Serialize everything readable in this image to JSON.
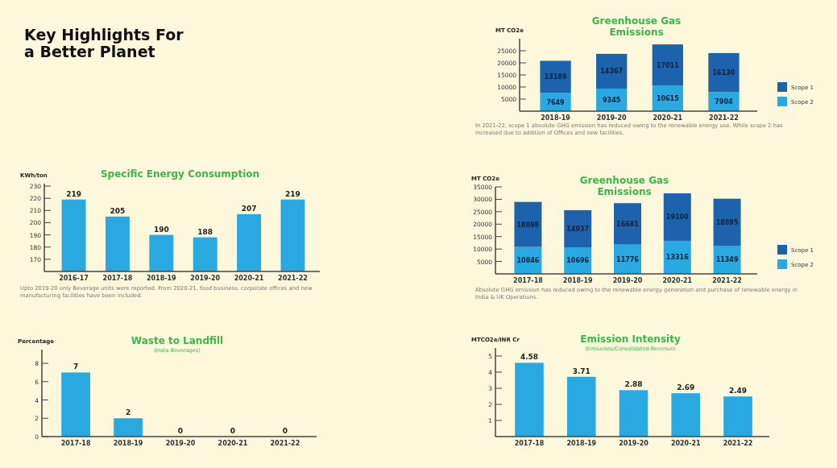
{
  "chart_data": [
    {
      "type": "other",
      "title": "Key Highlights For a Better Planet"
    },
    {
      "type": "bar",
      "title": "Greenhouse Gas Emissions",
      "ylabel": "MT CO2e",
      "categories": [
        "2018-19",
        "2019-20",
        "2020-21",
        "2021-22"
      ],
      "stacked": true,
      "data_labels": true,
      "legend": "right",
      "ylim": [
        0,
        30000
      ],
      "yticks": [
        5000,
        10000,
        15000,
        20000,
        25000
      ],
      "series": [
        {
          "name": "Scope 2",
          "color": "#29a9e1",
          "values": [
            7649,
            9345,
            10615,
            7904
          ]
        },
        {
          "name": "Scope 1",
          "color": "#1d62ad",
          "values": [
            13189,
            14367,
            17011,
            16130
          ]
        }
      ],
      "annotations": [
        "In 2021-22, scope 1 absolute GHG emission has reduced owing to the renewable energy use. While scope 2 has increased due to addition of Offices and new facilities."
      ]
    },
    {
      "type": "bar",
      "title": "Specific Energy Consumption",
      "ylabel": "KWh/ton",
      "categories": [
        "2016-17",
        "2017-18",
        "2018-19",
        "2019-20",
        "2020-21",
        "2021-22"
      ],
      "values": [
        219,
        205,
        190,
        188,
        207,
        219
      ],
      "color": "#29a9e1",
      "data_labels": true,
      "ylim": [
        160,
        232
      ],
      "yticks": [
        170,
        180,
        190,
        200,
        210,
        220,
        230
      ],
      "annotations": [
        "Upto 2019-20 only Beverage units were reported. From 2020-21, food business, corporate offices and new manufacturing facilities have been included."
      ]
    },
    {
      "type": "bar",
      "title": "Greenhouse Gas Emissions",
      "ylabel": "MT CO2e",
      "categories": [
        "2017-18",
        "2018-19",
        "2019-20",
        "2020-21",
        "2021-22"
      ],
      "stacked": true,
      "data_labels": true,
      "legend": "right",
      "ylim": [
        0,
        35000
      ],
      "yticks": [
        5000,
        10000,
        15000,
        20000,
        25000,
        30000,
        35000
      ],
      "series": [
        {
          "name": "Scope 2",
          "color": "#29a9e1",
          "values": [
            10846,
            10696,
            11776,
            13316,
            11349
          ]
        },
        {
          "name": "Scope 1",
          "color": "#1d62ad",
          "values": [
            18098,
            14937,
            16681,
            19100,
            18895
          ]
        }
      ],
      "annotations": [
        "Absolute GHG emission has reduced owing to the renewable energy generation and purchase of renewable energy in India & UK Operations."
      ]
    },
    {
      "type": "bar",
      "title": "Waste to Landfill",
      "subtitle": "(India Beverages)",
      "ylabel": "Percentage",
      "categories": [
        "2017-18",
        "2018-19",
        "2019-20",
        "2020-21",
        "2021-22"
      ],
      "values": [
        7,
        2,
        0,
        0,
        0
      ],
      "color": "#29a9e1",
      "data_labels": true,
      "ylim": [
        0,
        9.5
      ],
      "yticks": [
        0,
        2,
        4,
        6,
        8
      ]
    },
    {
      "type": "bar",
      "title": "Emission Intensity",
      "subtitle": "(Emissions/Consolidated Revenue)",
      "ylabel": "MTCO2e/INR Cr",
      "categories": [
        "2017-18",
        "2018-19",
        "2019-20",
        "2020-21",
        "2021-22"
      ],
      "values": [
        4.58,
        3.71,
        2.88,
        2.69,
        2.49
      ],
      "color": "#29a9e1",
      "data_labels": true,
      "ylim": [
        0,
        5.5
      ],
      "yticks": [
        1,
        2,
        3,
        4,
        5
      ]
    }
  ]
}
